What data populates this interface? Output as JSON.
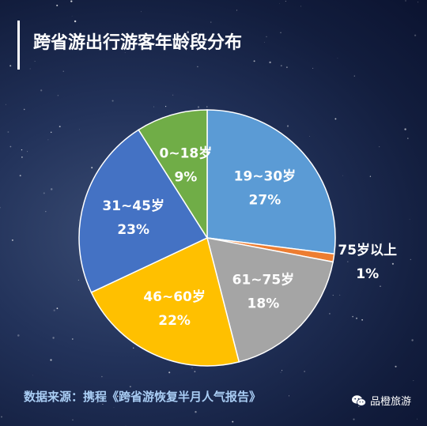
{
  "title": "跨省游出行游客年龄段分布",
  "source": "数据来源：携程《跨省游恢复半月人气报告》",
  "brand": {
    "name": "品橙旅游",
    "icon": "wechat-icon"
  },
  "colors": {
    "background": "#1a2850",
    "title": "#ffffff",
    "source": "#a9cdf4"
  },
  "chart_data": {
    "type": "pie",
    "title": "跨省游出行游客年龄段分布",
    "unit": "%",
    "start_angle": "12 o'clock",
    "direction": "clockwise",
    "slices": [
      {
        "label": "19~30岁",
        "value": 27,
        "display": "27%",
        "color": "#5b9bd5"
      },
      {
        "label": "75岁以上",
        "value": 1,
        "display": "1%",
        "color": "#ed7d31"
      },
      {
        "label": "61~75岁",
        "value": 18,
        "display": "18%",
        "color": "#a5a5a5"
      },
      {
        "label": "46~60岁",
        "value": 22,
        "display": "22%",
        "color": "#ffc000"
      },
      {
        "label": "31~45岁",
        "value": 23,
        "display": "23%",
        "color": "#4472c4"
      },
      {
        "label": "0~18岁",
        "value": 9,
        "display": "9%",
        "color": "#70ad47"
      }
    ]
  }
}
